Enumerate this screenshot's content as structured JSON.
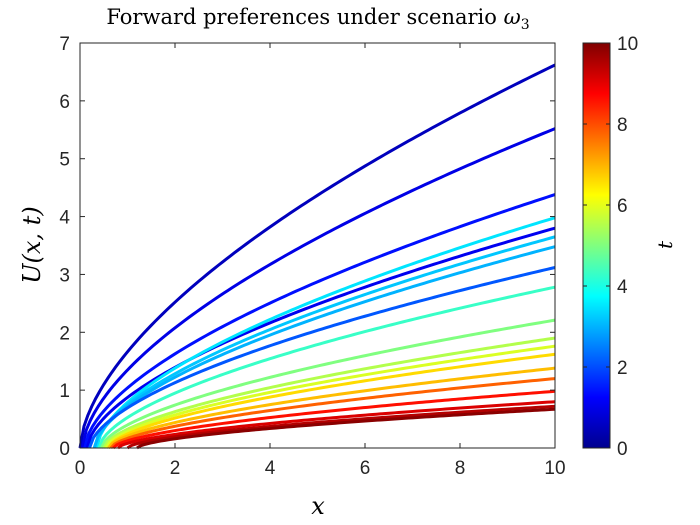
{
  "chart_data": {
    "type": "line",
    "title_text": "Forward preferences under scenario ",
    "title_symbol": "ω",
    "title_subscript": "3",
    "xlabel": "x",
    "ylabel": "U(x, t)",
    "xlim": [
      0,
      10
    ],
    "ylim": [
      0,
      7
    ],
    "xticks": [
      "0",
      "2",
      "4",
      "6",
      "8",
      "10"
    ],
    "yticks": [
      "0",
      "1",
      "2",
      "3",
      "4",
      "5",
      "6",
      "7"
    ],
    "colorbar": {
      "label": "t",
      "range": [
        0,
        10
      ],
      "ticks": [
        "0",
        "2",
        "4",
        "6",
        "8",
        "10"
      ],
      "colormap": "jet"
    },
    "grid": false,
    "series": [
      {
        "t": 0.6,
        "x0": 0.0,
        "end_value": 6.62
      },
      {
        "t": 1.0,
        "x0": 0.05,
        "end_value": 5.52
      },
      {
        "t": 1.4,
        "x0": 0.1,
        "end_value": 4.38
      },
      {
        "t": 1.1,
        "x0": 0.15,
        "end_value": 3.8
      },
      {
        "t": 3.5,
        "x0": 0.35,
        "end_value": 3.98
      },
      {
        "t": 3.2,
        "x0": 0.3,
        "end_value": 3.65
      },
      {
        "t": 3.0,
        "x0": 0.3,
        "end_value": 3.48
      },
      {
        "t": 2.1,
        "x0": 0.2,
        "end_value": 3.12
      },
      {
        "t": 4.3,
        "x0": 0.4,
        "end_value": 2.78
      },
      {
        "t": 5.0,
        "x0": 0.45,
        "end_value": 2.21
      },
      {
        "t": 5.5,
        "x0": 0.5,
        "end_value": 1.9
      },
      {
        "t": 5.9,
        "x0": 0.55,
        "end_value": 1.76
      },
      {
        "t": 6.6,
        "x0": 0.6,
        "end_value": 1.62
      },
      {
        "t": 6.9,
        "x0": 0.6,
        "end_value": 1.38
      },
      {
        "t": 7.8,
        "x0": 0.65,
        "end_value": 1.2
      },
      {
        "t": 8.6,
        "x0": 0.7,
        "end_value": 0.98
      },
      {
        "t": 9.1,
        "x0": 0.8,
        "end_value": 0.8
      },
      {
        "t": 9.5,
        "x0": 1.0,
        "end_value": 0.72
      },
      {
        "t": 9.9,
        "x0": 1.2,
        "end_value": 0.67
      }
    ]
  }
}
